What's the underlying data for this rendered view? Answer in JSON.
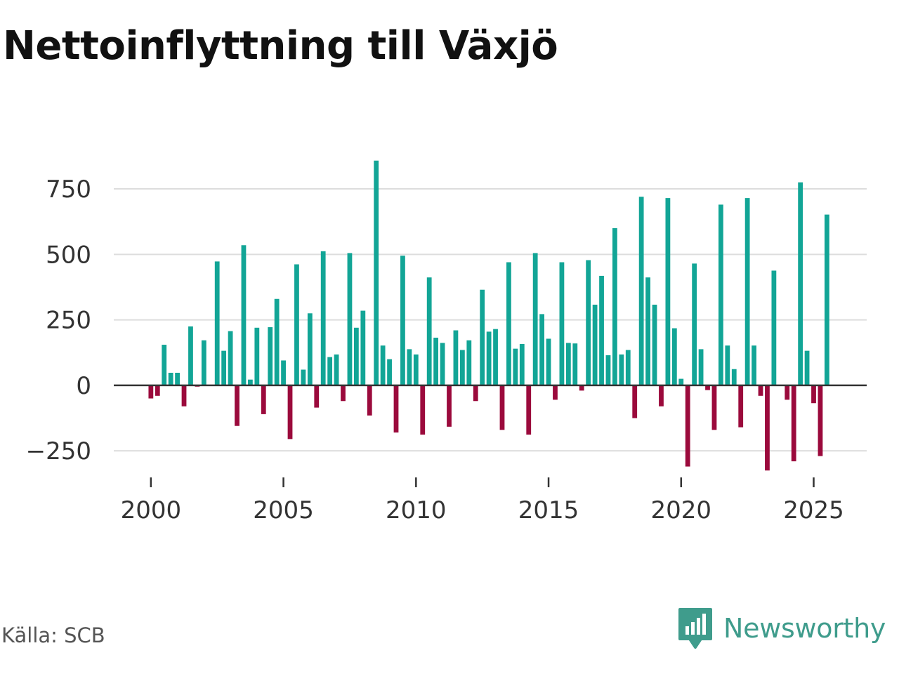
{
  "title": "Nettoinflyttning till Växjö",
  "source": "Källa: SCB",
  "brand": "Newsworthy",
  "colors": {
    "positive": "#12a596",
    "negative": "#9b0a3c",
    "grid": "#dddddd",
    "axis": "#333333",
    "brand": "#3f9c8c"
  },
  "chart_data": {
    "type": "bar",
    "title": "Nettoinflyttning till Växjö",
    "xlabel": "",
    "ylabel": "",
    "frequency": "quarterly",
    "x_ticks": [
      2000,
      2005,
      2010,
      2015,
      2020,
      2025
    ],
    "y_ticks": [
      -250,
      0,
      250,
      500,
      750
    ],
    "y_tick_labels": [
      "−250",
      "0",
      "250",
      "500",
      "750"
    ],
    "xlim": [
      1998.6,
      2027.0
    ],
    "ylim": [
      -330,
      860
    ],
    "start": 2000.0,
    "values": [
      -50,
      -40,
      155,
      48,
      48,
      -80,
      225,
      -5,
      172,
      0,
      473,
      132,
      207,
      -155,
      535,
      22,
      220,
      -110,
      222,
      330,
      95,
      -205,
      462,
      60,
      275,
      -85,
      512,
      108,
      118,
      -60,
      505,
      220,
      285,
      -115,
      858,
      152,
      100,
      -180,
      495,
      138,
      118,
      -188,
      412,
      182,
      162,
      -158,
      210,
      135,
      172,
      -60,
      365,
      205,
      215,
      -170,
      470,
      140,
      158,
      -188,
      505,
      272,
      178,
      -55,
      470,
      162,
      160,
      -20,
      478,
      308,
      418,
      115,
      600,
      118,
      135,
      -125,
      720,
      412,
      308,
      -80,
      715,
      218,
      25,
      -310,
      465,
      138,
      -18,
      -170,
      690,
      152,
      62,
      -160,
      715,
      152,
      -40,
      -325,
      438,
      0,
      -55,
      -290,
      775,
      132,
      -68,
      -270,
      652
    ]
  }
}
